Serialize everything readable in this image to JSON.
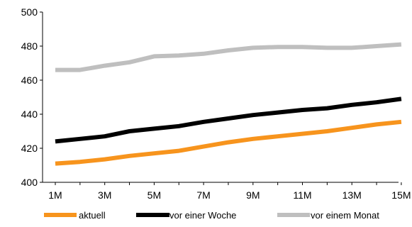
{
  "chart_data": {
    "type": "line",
    "x": [
      "1M",
      "2M",
      "3M",
      "4M",
      "5M",
      "6M",
      "7M",
      "8M",
      "9M",
      "10M",
      "11M",
      "12M",
      "13M",
      "14M",
      "15M"
    ],
    "x_tick_labels": [
      "1M",
      "3M",
      "5M",
      "7M",
      "9M",
      "11M",
      "13M",
      "15M"
    ],
    "y_tick_labels": [
      "400",
      "420",
      "440",
      "460",
      "480",
      "500"
    ],
    "ylim": [
      400,
      500
    ],
    "grid": false,
    "legend_position": "bottom",
    "series": [
      {
        "name": "aktuell",
        "color": "#f7941d",
        "values": [
          411,
          412,
          413.5,
          415.5,
          417,
          418.5,
          421,
          423.5,
          425.5,
          427,
          428.5,
          430,
          432,
          434,
          435.5
        ]
      },
      {
        "name": "vor einer Woche",
        "color": "#000000",
        "values": [
          424,
          425.5,
          427,
          430,
          431.5,
          433,
          435.5,
          437.5,
          439.5,
          441,
          442.5,
          443.5,
          445.5,
          447,
          449
        ]
      },
      {
        "name": "vor einem Monat",
        "color": "#bfbfbf",
        "values": [
          466,
          466,
          468.5,
          470.5,
          474,
          474.5,
          475.5,
          477.5,
          479,
          479.5,
          479.5,
          479,
          479,
          480,
          481
        ]
      }
    ]
  }
}
